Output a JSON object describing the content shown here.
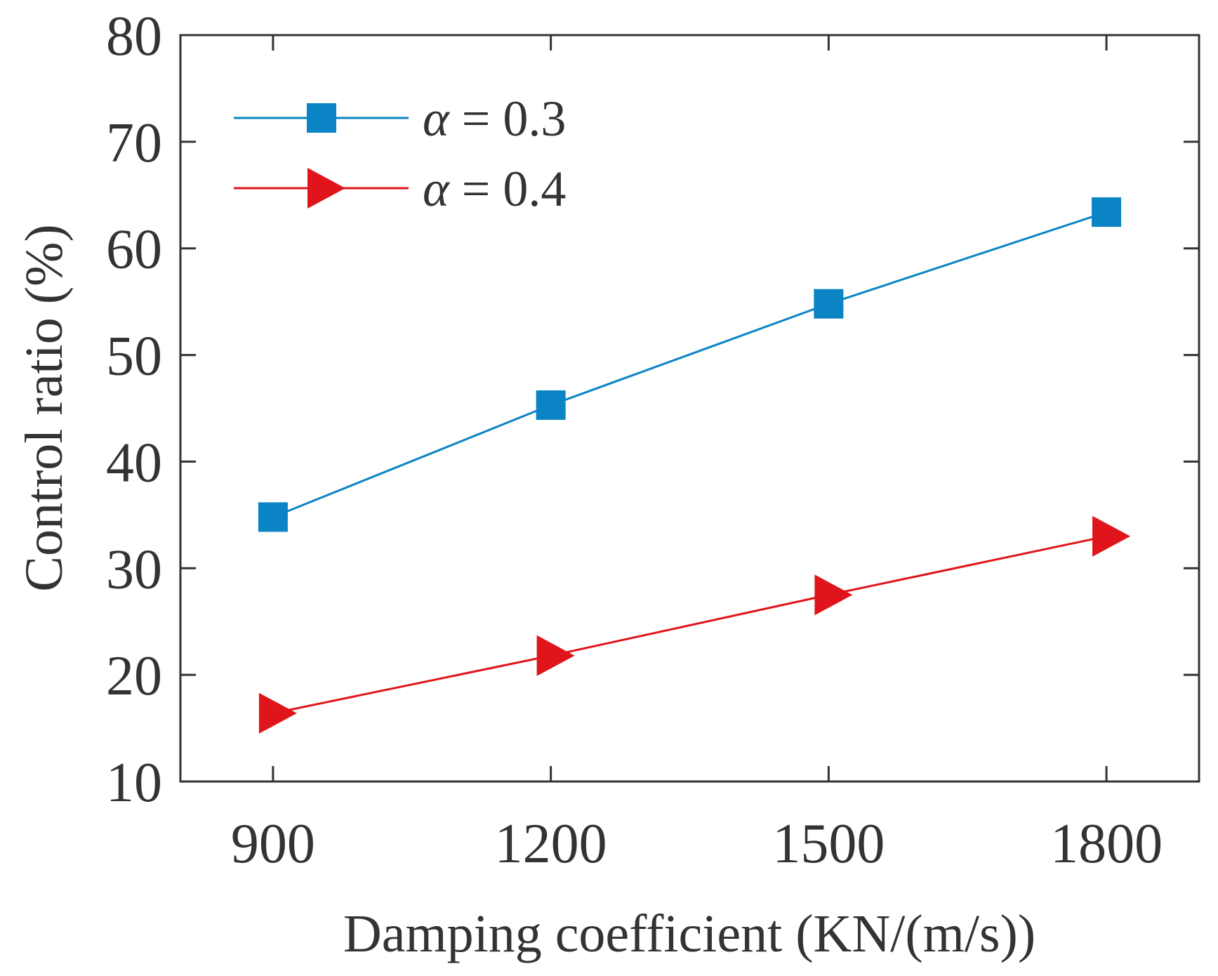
{
  "chart_data": {
    "type": "line",
    "title": "",
    "xlabel": "Damping coefficient (KN/(m/s))",
    "ylabel": "Control ratio (%)",
    "x": [
      900,
      1200,
      1500,
      1800
    ],
    "x_tick_labels": [
      "900",
      "1200",
      "1500",
      "1800"
    ],
    "xlim": [
      800,
      1900
    ],
    "ylim": [
      10,
      80
    ],
    "y_ticks": [
      10,
      20,
      30,
      40,
      50,
      60,
      70,
      80
    ],
    "y_tick_labels": [
      "10",
      "20",
      "30",
      "40",
      "50",
      "60",
      "70",
      "80"
    ],
    "grid": false,
    "legend_position": "top-left",
    "series": [
      {
        "name": "α = 0.3",
        "legend_symbol": "α",
        "legend_value": " = 0.3",
        "marker": "square",
        "color": "#0a84c4",
        "values": [
          34.8,
          45.3,
          54.8,
          63.4
        ]
      },
      {
        "name": "α = 0.4",
        "legend_symbol": "α",
        "legend_value": " = 0.4",
        "marker": "triangle-right",
        "color": "#e0151b",
        "values": [
          16.4,
          21.8,
          27.5,
          33.0
        ]
      }
    ]
  }
}
